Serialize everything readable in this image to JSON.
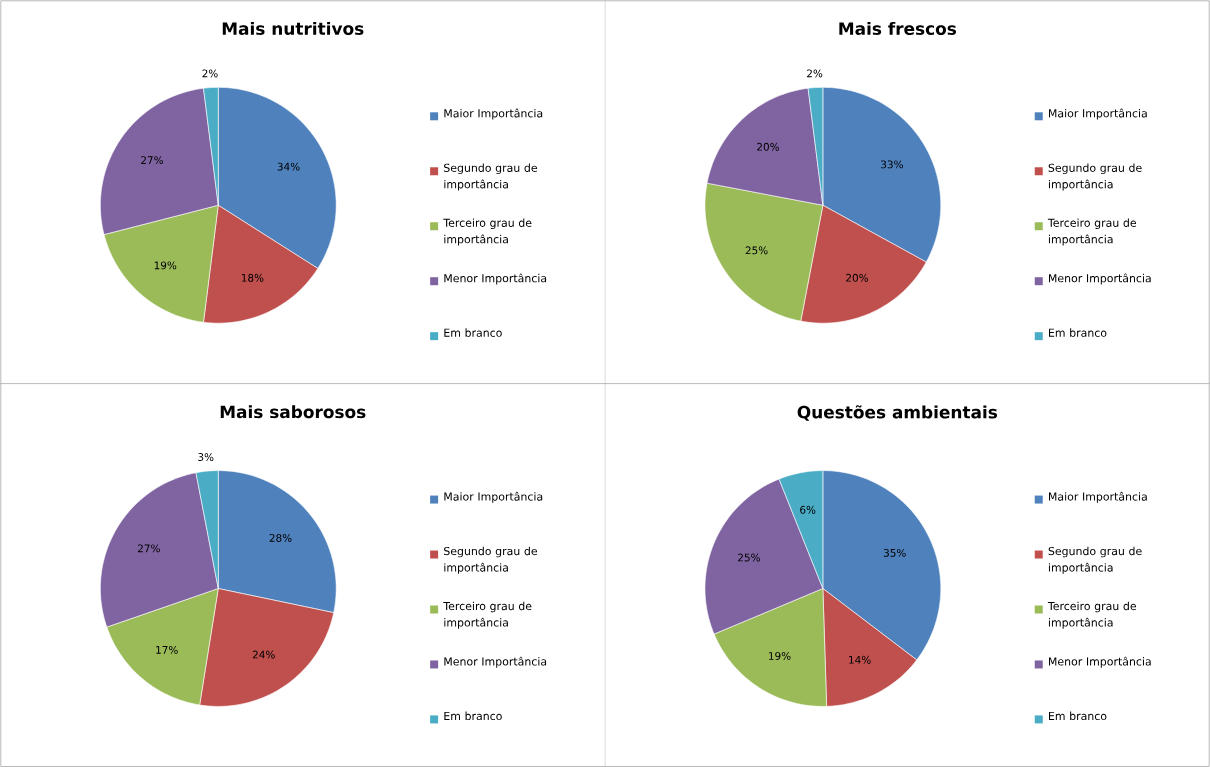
{
  "chart_data": [
    {
      "type": "pie",
      "title": "Mais nutritivos",
      "categories": [
        "Maior Importância",
        "Segundo grau de importância",
        "Terceiro grau de importância",
        "Menor Importância",
        "Em branco"
      ],
      "values": [
        34,
        18,
        19,
        27,
        2
      ],
      "value_labels": [
        "34%",
        "18%",
        "19%",
        "27%",
        "2%"
      ],
      "colors": [
        "#4f81bd",
        "#c0504d",
        "#9bbb59",
        "#8064a2",
        "#4bacc6"
      ],
      "legend": "right"
    },
    {
      "type": "pie",
      "title": "Mais frescos",
      "categories": [
        "Maior Importância",
        "Segundo grau de importância",
        "Terceiro grau de importância",
        "Menor Importância",
        "Em branco"
      ],
      "values": [
        33,
        20,
        25,
        20,
        2
      ],
      "value_labels": [
        "33%",
        "20%",
        "25%",
        "20%",
        "2%"
      ],
      "colors": [
        "#4f81bd",
        "#c0504d",
        "#9bbb59",
        "#8064a2",
        "#4bacc6"
      ],
      "legend": "right"
    },
    {
      "type": "pie",
      "title": "Mais saborosos",
      "categories": [
        "Maior Importância",
        "Segundo grau de importância",
        "Terceiro grau de importância",
        "Menor Importância",
        "Em branco"
      ],
      "values": [
        28,
        24,
        17,
        27,
        3
      ],
      "value_labels": [
        "28%",
        "24%",
        "17%",
        "27%",
        "3%"
      ],
      "colors": [
        "#4f81bd",
        "#c0504d",
        "#9bbb59",
        "#8064a2",
        "#4bacc6"
      ],
      "legend": "right"
    },
    {
      "type": "pie",
      "title": "Questões ambientais",
      "categories": [
        "Maior Importância",
        "Segundo grau de importância",
        "Terceiro grau de importância",
        "Menor Importância",
        "Em branco"
      ],
      "values": [
        35,
        14,
        19,
        25,
        6
      ],
      "value_labels": [
        "35%",
        "14%",
        "19%",
        "25%",
        "6%"
      ],
      "colors": [
        "#4f81bd",
        "#c0504d",
        "#9bbb59",
        "#8064a2",
        "#4bacc6"
      ],
      "legend": "right"
    }
  ]
}
